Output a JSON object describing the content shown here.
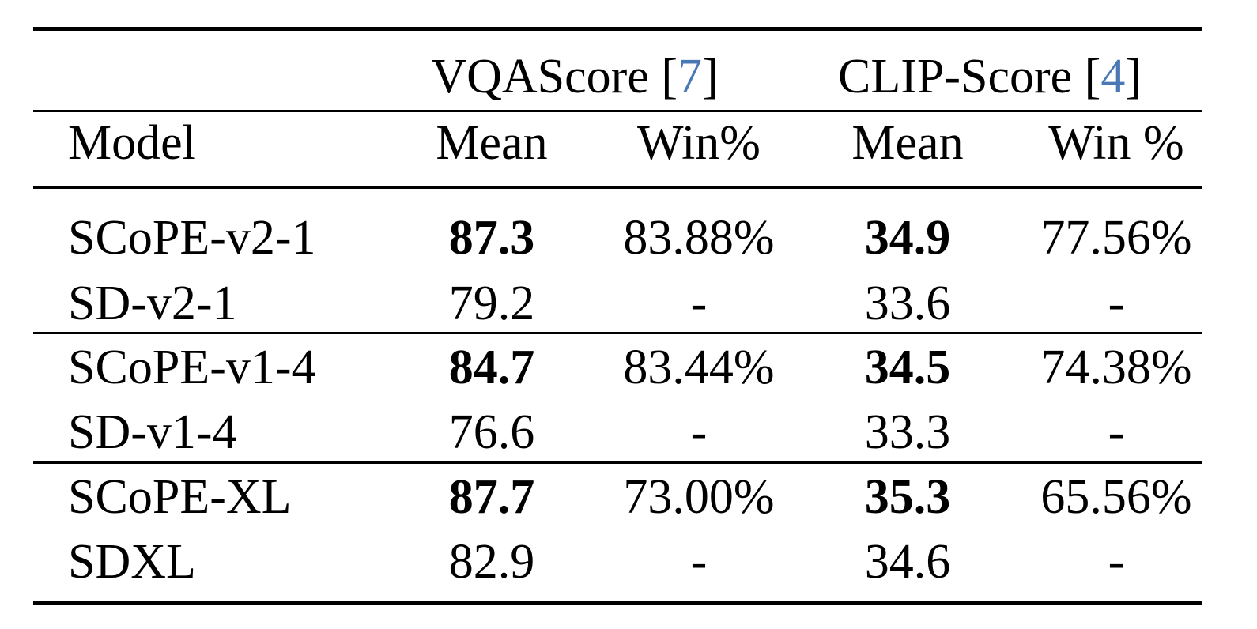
{
  "group_headers": {
    "vqa": {
      "name": "VQAScore",
      "ref": "7"
    },
    "clip": {
      "name": "CLIP-Score",
      "ref": "4"
    }
  },
  "columns": {
    "model": "Model",
    "vqa_mean": "Mean",
    "vqa_win": "Win%",
    "clip_mean": "Mean",
    "clip_win": "Win %"
  },
  "rows": [
    {
      "model": "SCoPE-v2-1",
      "vqa_mean": "87.3",
      "vqa_win": "83.88%",
      "clip_mean": "34.9",
      "clip_win": "77.56%"
    },
    {
      "model": "SD-v2-1",
      "vqa_mean": "79.2",
      "vqa_win": "-",
      "clip_mean": "33.6",
      "clip_win": "-"
    },
    {
      "model": "SCoPE-v1-4",
      "vqa_mean": "84.7",
      "vqa_win": "83.44%",
      "clip_mean": "34.5",
      "clip_win": "74.38%"
    },
    {
      "model": "SD-v1-4",
      "vqa_mean": "76.6",
      "vqa_win": "-",
      "clip_mean": "33.3",
      "clip_win": "-"
    },
    {
      "model": "SCoPE-XL",
      "vqa_mean": "87.7",
      "vqa_win": "73.00%",
      "clip_mean": "35.3",
      "clip_win": "65.56%"
    },
    {
      "model": "SDXL",
      "vqa_mean": "82.9",
      "vqa_win": "-",
      "clip_mean": "34.6",
      "clip_win": "-"
    }
  ],
  "colors": {
    "text": "#000000",
    "citation_link": "#4a78b5",
    "background": "#ffffff"
  }
}
